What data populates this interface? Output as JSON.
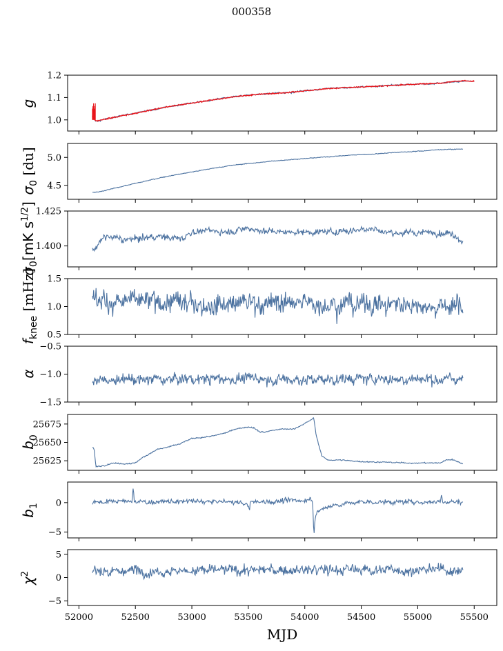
{
  "title": "000358",
  "xlabel": "MJD",
  "chart_data": [
    {
      "type": "line",
      "ylabel": "g",
      "color": "#4c72a0",
      "overlay_color": "#e8151b",
      "xlim": [
        51900,
        55700
      ],
      "ylim": [
        0.95,
        1.2
      ],
      "yticks": [
        "1.0",
        "1.1",
        "1.2"
      ],
      "ytick_values": [
        1.0,
        1.1,
        1.2
      ],
      "x": [
        52120,
        52125,
        52130,
        52140,
        52150,
        52170,
        52200,
        52250,
        52300,
        52400,
        52500,
        52600,
        52800,
        53000,
        53200,
        53400,
        53600,
        53800,
        54000,
        54200,
        54400,
        54600,
        54800,
        55000,
        55200,
        55300,
        55400,
        55500
      ],
      "y": [
        1.01,
        1.06,
        1.04,
        1.0,
        0.995,
        0.995,
        1.0,
        1.005,
        1.01,
        1.02,
        1.03,
        1.04,
        1.06,
        1.075,
        1.09,
        1.105,
        1.115,
        1.12,
        1.13,
        1.14,
        1.145,
        1.15,
        1.155,
        1.16,
        1.165,
        1.17,
        1.175,
        1.172
      ],
      "noise": 0.003
    },
    {
      "type": "line",
      "ylabel": "σ0 [du]",
      "color": "#4c72a0",
      "xlim": [
        51900,
        55700
      ],
      "ylim": [
        4.25,
        5.25
      ],
      "yticks": [
        "4.5",
        "5.0"
      ],
      "ytick_values": [
        4.5,
        5.0
      ],
      "x": [
        52120,
        52200,
        52400,
        52600,
        52800,
        53000,
        53200,
        53400,
        53600,
        53800,
        54000,
        54200,
        54400,
        54600,
        54800,
        55000,
        55200,
        55400
      ],
      "y": [
        4.37,
        4.39,
        4.49,
        4.58,
        4.67,
        4.74,
        4.81,
        4.87,
        4.91,
        4.95,
        4.98,
        5.01,
        5.04,
        5.06,
        5.09,
        5.11,
        5.14,
        5.15
      ],
      "noise": 0.006
    },
    {
      "type": "line",
      "ylabel": "σ0[mK s^1/2]",
      "color": "#4c72a0",
      "xlim": [
        51900,
        55700
      ],
      "ylim": [
        1.385,
        1.425
      ],
      "yticks": [
        "1.400",
        "1.425"
      ],
      "ytick_values": [
        1.4,
        1.425
      ],
      "x": [
        52120,
        52150,
        52200,
        52250,
        52300,
        52400,
        52500,
        52700,
        52900,
        53000,
        53100,
        53300,
        53500,
        53600,
        53800,
        54000,
        54200,
        54400,
        54600,
        54700,
        54900,
        55100,
        55300,
        55400
      ],
      "y": [
        1.397,
        1.399,
        1.404,
        1.407,
        1.406,
        1.404,
        1.405,
        1.407,
        1.405,
        1.41,
        1.411,
        1.41,
        1.413,
        1.411,
        1.41,
        1.41,
        1.41,
        1.411,
        1.413,
        1.41,
        1.409,
        1.41,
        1.409,
        1.404
      ],
      "noise": 0.002
    },
    {
      "type": "line",
      "ylabel": "f_knee [mHz]",
      "color": "#4c72a0",
      "xlim": [
        51900,
        55700
      ],
      "ylim": [
        0.5,
        1.5
      ],
      "yticks": [
        "0.5",
        "1.0",
        "1.5"
      ],
      "ytick_values": [
        0.5,
        1.0,
        1.5
      ],
      "x": [
        52120,
        52500,
        53000,
        53500,
        54000,
        54500,
        55000,
        55400
      ],
      "y": [
        1.1,
        1.08,
        1.05,
        1.07,
        1.06,
        1.05,
        1.03,
        1.0
      ],
      "noise": 0.16
    },
    {
      "type": "line",
      "ylabel": "α",
      "color": "#4c72a0",
      "xlim": [
        51900,
        55700
      ],
      "ylim": [
        -1.5,
        -0.5
      ],
      "yticks": [
        "−1.5",
        "−1.0",
        "−0.5"
      ],
      "ytick_values": [
        -1.5,
        -1.0,
        -0.5
      ],
      "x": [
        52120,
        52500,
        53000,
        53500,
        54000,
        54500,
        55000,
        55400
      ],
      "y": [
        -1.12,
        -1.1,
        -1.09,
        -1.08,
        -1.1,
        -1.08,
        -1.09,
        -1.08
      ],
      "noise": 0.085
    },
    {
      "type": "line",
      "ylabel": "b0",
      "color": "#4c72a0",
      "xlim": [
        51900,
        55700
      ],
      "ylim": [
        25612,
        25688
      ],
      "yticks": [
        "25625",
        "25650",
        "25675"
      ],
      "ytick_values": [
        25625,
        25650,
        25675
      ],
      "x": [
        52120,
        52135,
        52150,
        52200,
        52300,
        52400,
        52500,
        52550,
        52600,
        52650,
        52700,
        52750,
        52800,
        52850,
        52900,
        52950,
        53000,
        53100,
        53200,
        53300,
        53400,
        53500,
        53550,
        53600,
        53650,
        53700,
        53800,
        53900,
        53950,
        54000,
        54050,
        54080,
        54100,
        54150,
        54200,
        54300,
        54500,
        54700,
        54900,
        55000,
        55100,
        55200,
        55250,
        55300,
        55350,
        55400
      ],
      "y": [
        25643,
        25641,
        25617,
        25618,
        25622,
        25621,
        25622,
        25628,
        25632,
        25637,
        25641,
        25642,
        25644,
        25646,
        25648,
        25652,
        25655,
        25657,
        25659,
        25663,
        25669,
        25671,
        25670,
        25664,
        25664,
        25666,
        25668,
        25668,
        25672,
        25676,
        25680,
        25683,
        25660,
        25632,
        25626,
        25626,
        25624,
        25623,
        25622,
        25622,
        25622,
        25622,
        25626,
        25627,
        25624,
        25621
      ],
      "noise": 0.7
    },
    {
      "type": "line",
      "ylabel": "b1",
      "color": "#4c72a0",
      "xlim": [
        51900,
        55700
      ],
      "ylim": [
        -6,
        3.5
      ],
      "yticks": [
        "−5",
        "0"
      ],
      "ytick_values": [
        -5,
        0
      ],
      "x": [
        52120,
        52400,
        52470,
        52480,
        52490,
        52600,
        53000,
        53400,
        53500,
        53510,
        53520,
        54000,
        54050,
        54070,
        54080,
        54090,
        54100,
        54150,
        54250,
        54500,
        55000,
        55200,
        55210,
        55220,
        55400
      ],
      "y": [
        0.1,
        0.2,
        0.2,
        2.8,
        0.2,
        0.1,
        0.2,
        0.1,
        -0.4,
        -1.3,
        0.1,
        0.4,
        0.8,
        0.5,
        -5.6,
        -2.8,
        -1.8,
        -1.2,
        -0.4,
        0.1,
        0.1,
        0.2,
        1.5,
        0.2,
        0.1
      ],
      "noise": 0.35
    },
    {
      "type": "line",
      "ylabel": "χ²",
      "color": "#4c72a0",
      "xlim": [
        51900,
        55700
      ],
      "ylim": [
        -6,
        6
      ],
      "yticks": [
        "−5",
        "0",
        "5"
      ],
      "ytick_values": [
        -5,
        0,
        5
      ],
      "xticks": [
        "52000",
        "52500",
        "53000",
        "53500",
        "54000",
        "54500",
        "55000",
        "55500"
      ],
      "xtick_values": [
        52000,
        52500,
        53000,
        53500,
        54000,
        54500,
        55000,
        55500
      ],
      "x": [
        52120,
        52500,
        53000,
        53500,
        54000,
        54500,
        55000,
        55400
      ],
      "y": [
        1.4,
        1.5,
        1.5,
        1.6,
        1.6,
        1.7,
        1.6,
        1.7
      ],
      "noise": 1.0
    }
  ]
}
